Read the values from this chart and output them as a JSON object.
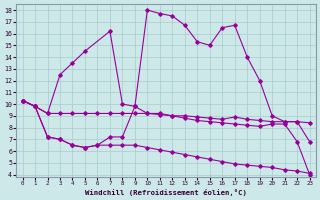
{
  "xlabel": "Windchill (Refroidissement éolien,°C)",
  "bg_color": "#cce8e8",
  "line_color": "#990099",
  "grid_color": "#aacccc",
  "xlim": [
    -0.5,
    23.5
  ],
  "ylim": [
    3.8,
    18.5
  ],
  "xticks": [
    0,
    1,
    2,
    3,
    4,
    5,
    6,
    7,
    8,
    9,
    10,
    11,
    12,
    13,
    14,
    15,
    16,
    17,
    18,
    19,
    20,
    21,
    22,
    23
  ],
  "yticks": [
    4,
    5,
    6,
    7,
    8,
    9,
    10,
    11,
    12,
    13,
    14,
    15,
    16,
    17,
    18
  ],
  "curve_upper_x": [
    0,
    1,
    2,
    3,
    4,
    5,
    7,
    8,
    9,
    10,
    11,
    12,
    13,
    14,
    15,
    16,
    17,
    18,
    19,
    20,
    21,
    22,
    23
  ],
  "curve_upper_y": [
    10.3,
    9.8,
    9.2,
    12.5,
    13.5,
    14.5,
    16.2,
    10.0,
    9.8,
    18.0,
    17.7,
    17.5,
    16.7,
    15.3,
    15.0,
    16.5,
    16.7,
    14.0,
    12.0,
    9.0,
    8.5,
    8.5,
    6.8
  ],
  "curve_flat1_x": [
    0,
    1,
    2,
    3,
    4,
    5,
    6,
    7,
    8,
    9,
    10,
    11,
    12,
    13,
    14,
    15,
    16,
    17,
    18,
    19,
    20,
    21,
    22,
    23
  ],
  "curve_flat1_y": [
    10.3,
    9.8,
    9.2,
    9.2,
    9.2,
    9.2,
    9.2,
    9.2,
    9.2,
    9.2,
    9.2,
    9.2,
    9.0,
    9.0,
    8.9,
    8.8,
    8.7,
    8.9,
    8.7,
    8.6,
    8.5,
    8.5,
    8.5,
    8.4
  ],
  "curve_lower_x": [
    0,
    1,
    2,
    3,
    4,
    5,
    6,
    7,
    8,
    9,
    10,
    11,
    12,
    13,
    14,
    15,
    16,
    17,
    18,
    19,
    20,
    21,
    22,
    23
  ],
  "curve_lower_y": [
    10.3,
    9.8,
    7.2,
    7.0,
    6.5,
    6.3,
    6.5,
    6.5,
    6.5,
    6.5,
    6.3,
    6.1,
    5.9,
    5.7,
    5.5,
    5.3,
    5.1,
    4.9,
    4.8,
    4.7,
    4.6,
    4.4,
    4.3,
    4.1
  ],
  "curve_mid_x": [
    0,
    1,
    2,
    3,
    4,
    5,
    6,
    7,
    8,
    9,
    10,
    11,
    12,
    13,
    14,
    15,
    16,
    17,
    18,
    19,
    20,
    21,
    22,
    23
  ],
  "curve_mid_y": [
    10.3,
    9.8,
    7.2,
    7.0,
    6.5,
    6.3,
    6.5,
    7.2,
    7.2,
    9.8,
    9.2,
    9.1,
    9.0,
    8.8,
    8.6,
    8.5,
    8.4,
    8.3,
    8.2,
    8.1,
    8.3,
    8.3,
    6.8,
    4.0
  ]
}
